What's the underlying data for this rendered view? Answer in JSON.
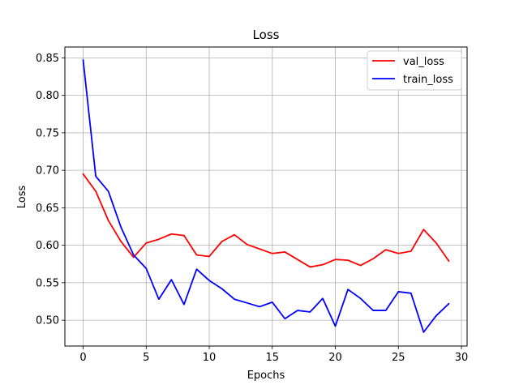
{
  "chart_data": {
    "type": "line",
    "title": "Loss",
    "xlabel": "Epochs",
    "ylabel": "Loss",
    "xlim": [
      -1.45,
      30.45
    ],
    "ylim": [
      0.4655,
      0.8645
    ],
    "x_ticks": [
      0,
      5,
      10,
      15,
      20,
      25,
      30
    ],
    "y_ticks": [
      0.5,
      0.55,
      0.6,
      0.65,
      0.7,
      0.75,
      0.8,
      0.85
    ],
    "grid": true,
    "legend_position": "top-right",
    "x": [
      0,
      1,
      2,
      3,
      4,
      5,
      6,
      7,
      8,
      9,
      10,
      11,
      12,
      13,
      14,
      15,
      16,
      17,
      18,
      19,
      20,
      21,
      22,
      23,
      24,
      25,
      26,
      27,
      28,
      29
    ],
    "series": [
      {
        "name": "val_loss",
        "color": "#ff0000",
        "values": [
          0.695,
          0.672,
          0.633,
          0.605,
          0.584,
          0.603,
          0.608,
          0.615,
          0.613,
          0.587,
          0.585,
          0.605,
          0.614,
          0.601,
          0.595,
          0.589,
          0.591,
          0.581,
          0.571,
          0.574,
          0.581,
          0.58,
          0.573,
          0.582,
          0.594,
          0.589,
          0.592,
          0.621,
          0.603,
          0.579
        ]
      },
      {
        "name": "train_loss",
        "color": "#0000ff",
        "values": [
          0.847,
          0.692,
          0.672,
          0.624,
          0.587,
          0.569,
          0.528,
          0.554,
          0.521,
          0.568,
          0.553,
          0.542,
          0.528,
          0.523,
          0.518,
          0.524,
          0.502,
          0.513,
          0.511,
          0.529,
          0.492,
          0.541,
          0.529,
          0.513,
          0.513,
          0.538,
          0.536,
          0.484,
          0.506,
          0.522
        ]
      }
    ]
  }
}
